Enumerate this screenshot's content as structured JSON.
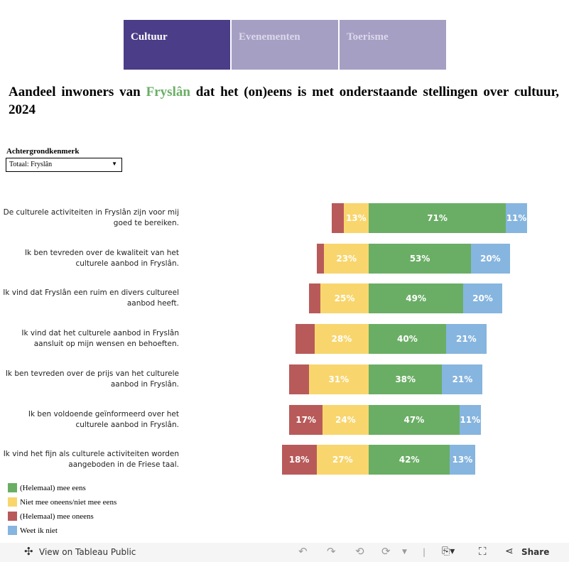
{
  "tabs": [
    {
      "label": "Cultuur",
      "active": true
    },
    {
      "label": "Evenementen",
      "active": false
    },
    {
      "label": "Toerisme",
      "active": false
    }
  ],
  "title": {
    "before": "Aandeel inwoners van ",
    "highlight": "Fryslân",
    "after": " dat het (on)eens is met onderstaande stellingen over cultuur, 2024"
  },
  "filter": {
    "label": "Achtergrondkenmerk",
    "value": "Totaal: Fryslân"
  },
  "chart_data": {
    "type": "bar",
    "orientation": "horizontal",
    "stacked": "diverging",
    "categories": [
      "De culturele activiteiten in Fryslân zijn voor mij goed te bereiken.",
      "Ik ben tevreden over de kwaliteit van het culturele aanbod in Fryslân.",
      "Ik vind dat Fryslân een ruim en divers cultureel aanbod heeft.",
      "Ik vind dat het culturele aanbod in Fryslân aansluit op mijn wensen en behoeften.",
      "Ik ben tevreden over de prijs van het culturele aanbod in Fryslân.",
      "Ik ben voldoende geïnformeerd over het culturele aanbod in Fryslân.",
      "Ik vind het fijn als culturele activiteiten worden aangeboden in de Friese taal."
    ],
    "series": [
      {
        "name": "(Helemaal) mee oneens",
        "color": "#b85a5a",
        "values": [
          6,
          4,
          6,
          10,
          10,
          17,
          18
        ],
        "labels": [
          "",
          "",
          "",
          "",
          "",
          "17%",
          "18%"
        ]
      },
      {
        "name": "Niet mee oneens/niet mee eens",
        "color": "#f8d66d",
        "values": [
          13,
          23,
          25,
          28,
          31,
          24,
          27
        ],
        "labels": [
          "13%",
          "23%",
          "25%",
          "28%",
          "31%",
          "24%",
          "27%"
        ]
      },
      {
        "name": "(Helemaal) mee eens",
        "color": "#6aae65",
        "values": [
          71,
          53,
          49,
          40,
          38,
          47,
          42
        ],
        "labels": [
          "71%",
          "53%",
          "49%",
          "40%",
          "38%",
          "47%",
          "42%"
        ]
      },
      {
        "name": "Weet ik niet",
        "color": "#86b5df",
        "values": [
          11,
          20,
          20,
          21,
          21,
          11,
          13
        ],
        "labels": [
          "11%",
          "20%",
          "20%",
          "21%",
          "21%",
          "11%",
          "13%"
        ]
      }
    ],
    "legend": [
      "(Helemaal) mee eens",
      "Niet mee oneens/niet mee eens",
      "(Helemaal) mee oneens",
      "Weet ik niet"
    ],
    "legend_colors": [
      "#6aae65",
      "#f8d66d",
      "#b85a5a",
      "#86b5df"
    ],
    "unit": "%"
  },
  "toolbar": {
    "view": "View on Tableau Public",
    "share": "Share"
  }
}
